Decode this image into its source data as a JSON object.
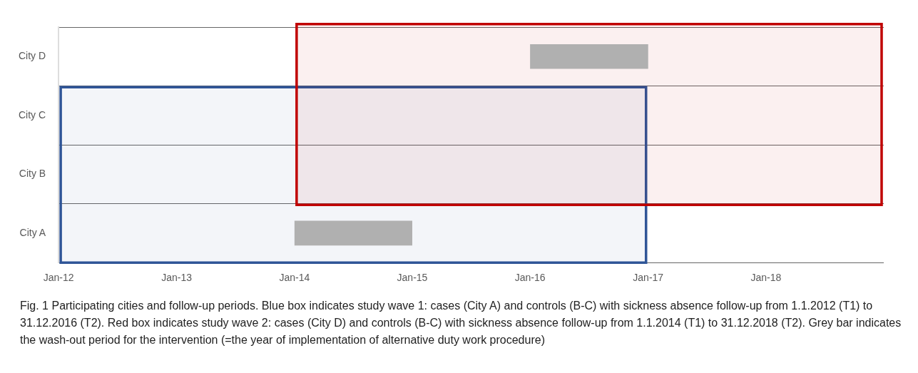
{
  "chart_data": {
    "type": "bar",
    "orientation": "horizontal",
    "categories": [
      "City D",
      "City C",
      "City B",
      "City A"
    ],
    "values": [
      null,
      null,
      null,
      null
    ],
    "xlim": [
      "2012-01",
      "2019-01"
    ],
    "xticks": [
      {
        "value": "2012-01",
        "label": "Jan-12"
      },
      {
        "value": "2013-01",
        "label": "Jan-13"
      },
      {
        "value": "2014-01",
        "label": "Jan-14"
      },
      {
        "value": "2015-01",
        "label": "Jan-15"
      },
      {
        "value": "2016-01",
        "label": "Jan-16"
      },
      {
        "value": "2017-01",
        "label": "Jan-17"
      },
      {
        "value": "2018-01",
        "label": "Jan-18"
      }
    ],
    "grid": "y",
    "bands": [
      {
        "axis": "x",
        "from": "2012-01",
        "to": "2017-01",
        "color": "#2f5597"
      },
      {
        "axis": "x",
        "from": "2014-01",
        "to": "2019-01",
        "color": "#c00000"
      },
      {
        "axis": "x",
        "from": "2014-01",
        "to": "2015-01",
        "color": "#b0b0b0"
      },
      {
        "axis": "x",
        "from": "2016-01",
        "to": "2017-01",
        "color": "#b0b0b0"
      }
    ],
    "annotations": [
      "Fig. 1 Participating cities and follow-up periods. Blue box indicates study wave 1: cases (City A) and controls (B-C) with sickness absence follow-up from 1.1.2012 (T1) to 31.12.2016 (T2). Red box indicates study wave 2: cases (City D) and controls (B-C) with sickness absence follow-up from 1.1.2014 (T1) to 31.12.2018 (T2). Grey bar indicates the wash-out period for the intervention (=the year of implementation of alternative duty work procedure)"
    ]
  }
}
